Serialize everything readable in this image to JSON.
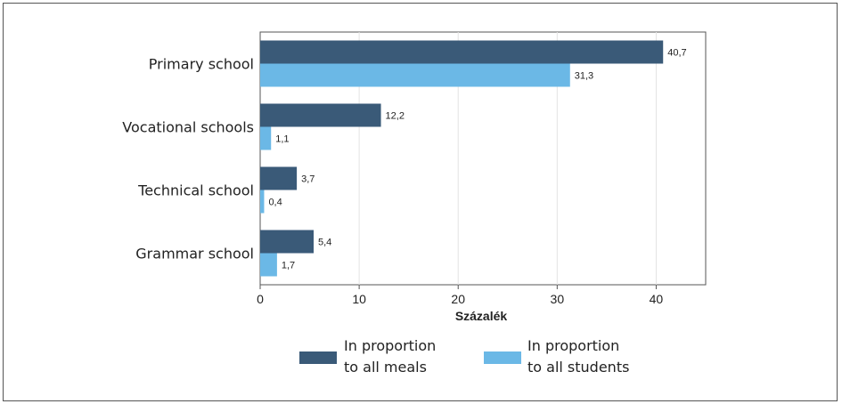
{
  "chart_data": {
    "type": "bar",
    "orientation": "horizontal",
    "categories": [
      "Primary school",
      "Vocational schools",
      "Technical school",
      "Grammar school"
    ],
    "series": [
      {
        "name": "In proportion to all meals",
        "name_lines": [
          "In proportion",
          "to all meals"
        ],
        "color": "#3a5a78",
        "values": [
          40.7,
          12.2,
          3.7,
          5.4
        ],
        "value_labels": [
          "40,7",
          "12,2",
          "3,7",
          "5,4"
        ]
      },
      {
        "name": "In proportion to all students",
        "name_lines": [
          "In proportion",
          "to all students"
        ],
        "color": "#6bb8e6",
        "values": [
          31.3,
          1.1,
          0.4,
          1.7
        ],
        "value_labels": [
          "31,3",
          "1,1",
          "0,4",
          "1,7"
        ]
      }
    ],
    "xlabel": "Százalék",
    "xlim": [
      0,
      45
    ],
    "xticks": [
      0,
      10,
      20,
      30,
      40
    ],
    "grid": true,
    "legend_position": "bottom"
  }
}
